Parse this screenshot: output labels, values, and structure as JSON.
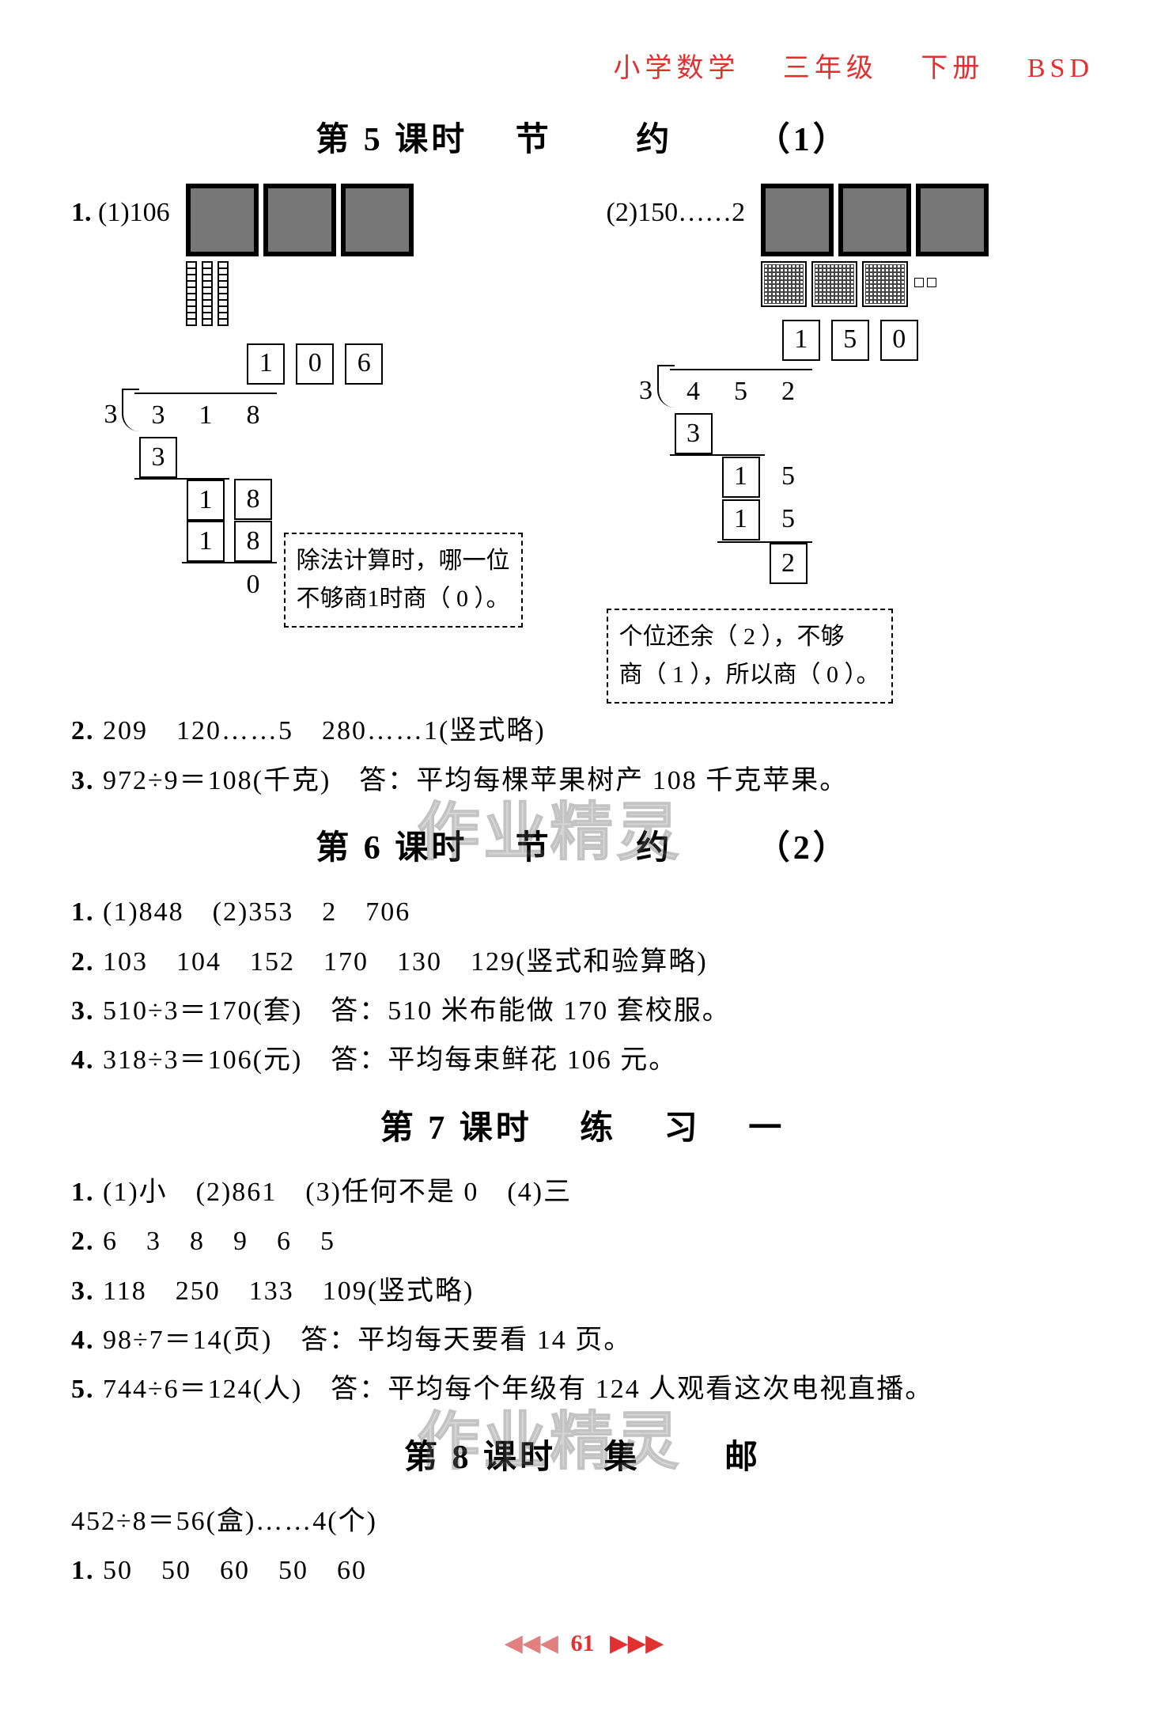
{
  "header": {
    "subject": "小学数学",
    "grade": "三年级",
    "volume": "下册",
    "series": "BSD"
  },
  "lesson5": {
    "title_a": "第 5 课时",
    "title_b": "节",
    "title_c": "约",
    "title_d": "（1）",
    "q1": {
      "num": "1.",
      "p1_label": "(1)106",
      "p2_label": "(2)150……2",
      "div1": {
        "quotient": [
          "1",
          "0",
          "6"
        ],
        "divisor": "3",
        "dividend": [
          "3",
          "1",
          "8"
        ],
        "step1": [
          "3"
        ],
        "step2a": [
          "1",
          "8"
        ],
        "step2b": [
          "1",
          "8"
        ],
        "rem": "0"
      },
      "div2": {
        "quotient": [
          "1",
          "5",
          "0"
        ],
        "divisor": "3",
        "dividend": [
          "4",
          "5",
          "2"
        ],
        "step1": [
          "3"
        ],
        "step2a": [
          "1",
          "5"
        ],
        "step2b": [
          "1",
          "5"
        ],
        "rem": "2"
      },
      "note1_l1": "除法计算时，哪一位",
      "note1_l2": "不够商1时商（ 0 ）。",
      "note2_l1": "个位还余（ 2 ），不够",
      "note2_l2": "商（ 1 ），所以商（ 0 ）。"
    },
    "q2": {
      "num": "2.",
      "text": "209　120……5　280……1(竖式略)"
    },
    "q3": {
      "num": "3.",
      "text": "972÷9＝108(千克)　答：平均每棵苹果树产 108 千克苹果。"
    }
  },
  "lesson6": {
    "title_a": "第 6 课时",
    "title_b": "节",
    "title_c": "约",
    "title_d": "（2）",
    "q1": {
      "num": "1.",
      "text": "(1)848　(2)353　2　706"
    },
    "q2": {
      "num": "2.",
      "text": "103　104　152　170　130　129(竖式和验算略)"
    },
    "q3": {
      "num": "3.",
      "text": "510÷3＝170(套)　答：510 米布能做 170 套校服。"
    },
    "q4": {
      "num": "4.",
      "text": "318÷3＝106(元)　答：平均每束鲜花 106 元。"
    }
  },
  "lesson7": {
    "title_a": "第 7 课时",
    "title_b": "练",
    "title_c": "习",
    "title_d": "一",
    "q1": {
      "num": "1.",
      "text": "(1)小　(2)861　(3)任何不是 0　(4)三"
    },
    "q2": {
      "num": "2.",
      "text": "6　3　8　9　6　5"
    },
    "q3": {
      "num": "3.",
      "text": "118　250　133　109(竖式略)"
    },
    "q4": {
      "num": "4.",
      "text": "98÷7＝14(页)　答：平均每天要看 14 页。"
    },
    "q5": {
      "num": "5.",
      "text": "744÷6＝124(人)　答：平均每个年级有 124 人观看这次电视直播。"
    }
  },
  "lesson8": {
    "title_a": "第 8 课时",
    "title_b": "集",
    "title_c": "邮",
    "intro": "452÷8＝56(盒)……4(个)",
    "q1": {
      "num": "1.",
      "text": "50　50　60　50　60"
    }
  },
  "footer": {
    "page": "61"
  },
  "watermark": "作业精灵",
  "colors": {
    "accent": "#e03030",
    "text": "#000000",
    "bg": "#ffffff"
  }
}
